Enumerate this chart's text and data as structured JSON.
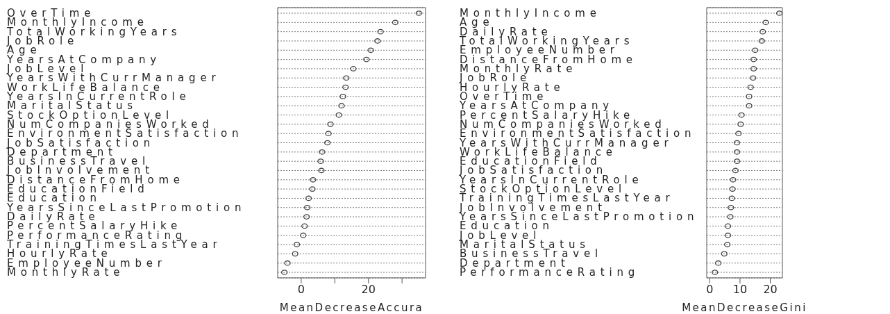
{
  "chart_data": [
    {
      "type": "scatter",
      "orientation": "horizontal",
      "xlabel": "MeanDecreaseAccura",
      "marker": "circle",
      "grid": "y",
      "color": "#444444",
      "categories": [
        "OverTime",
        "MonthlyIncome",
        "TotalWorkingYears",
        "JobRole",
        "Age",
        "YearsAtCompany",
        "JobLevel",
        "YearsWithCurrManager",
        "WorkLifeBalance",
        "YearsInCurrentRole",
        "MaritalStatus",
        "StockOptionLevel",
        "NumCompaniesWorked",
        "EnvironmentSatisfaction",
        "JobSatisfaction",
        "Department",
        "BusinessTravel",
        "JobInvolvement",
        "DistanceFromHome",
        "EducationField",
        "Education",
        "YearsSinceLastPromotion",
        "DailyRate",
        "PercentSalaryHike",
        "PerformanceRating",
        "TrainingTimesLastYear",
        "HourlyRate",
        "EmployeeNumber",
        "MonthlyRate"
      ],
      "values": [
        35,
        28,
        23.6,
        22.7,
        20.7,
        19.4,
        15.5,
        13.4,
        13.2,
        12.4,
        12,
        11.2,
        8.7,
        8.1,
        7.8,
        6.2,
        5.8,
        6,
        3.5,
        3.3,
        2.2,
        1.8,
        1.6,
        1,
        0.6,
        -1.3,
        -1.8,
        -4.1,
        -5
      ],
      "xlim": [
        -7,
        37
      ],
      "xticks": [
        0,
        {
          "value": 10,
          "label": null
        },
        20,
        {
          "value": 30,
          "label": null
        }
      ]
    },
    {
      "type": "scatter",
      "orientation": "horizontal",
      "xlabel": "MeanDecreaseGini",
      "marker": "circle",
      "grid": "y",
      "color": "#444444",
      "categories": [
        "MonthlyIncome",
        "Age",
        "DailyRate",
        "TotalWorkingYears",
        "EmployeeNumber",
        "DistanceFromHome",
        "MonthlyRate",
        "JobRole",
        "HourlyRate",
        "OverTime",
        "YearsAtCompany",
        "PercentSalaryHike",
        "NumCompaniesWorked",
        "EnvironmentSatisfaction",
        "YearsWithCurrManager",
        "WorkLifeBalance",
        "EducationField",
        "JobSatisfaction",
        "YearsInCurrentRole",
        "StockOptionLevel",
        "TrainingTimesLastYear",
        "JobInvolvement",
        "YearsSinceLastPromotion",
        "Education",
        "JobLevel",
        "MaritalStatus",
        "BusinessTravel",
        "Department",
        "PerformanceRating"
      ],
      "values": [
        23,
        18.5,
        17.5,
        17.2,
        15,
        14.5,
        14.5,
        14.3,
        13.5,
        13,
        13,
        10.5,
        10.2,
        9.5,
        9,
        9,
        9,
        8.5,
        7.7,
        7.5,
        7.3,
        7,
        6.8,
        6,
        6,
        5.8,
        4.8,
        2.8,
        1.7
      ],
      "xlim": [
        -1,
        24
      ],
      "xticks": [
        0,
        10,
        20
      ]
    }
  ]
}
